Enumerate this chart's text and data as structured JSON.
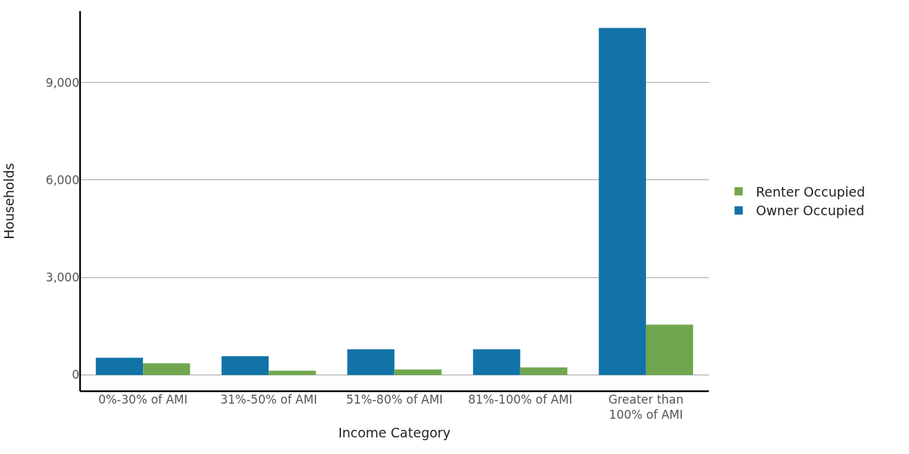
{
  "chart_data": {
    "type": "bar",
    "xlabel": "Income Category",
    "ylabel": "Households",
    "categories": [
      "0%-30% of AMI",
      "31%-50% of AMI",
      "51%-80% of AMI",
      "81%-100% of AMI",
      "Greater than 100% of AMI"
    ],
    "series": [
      {
        "name": "Owner Occupied",
        "color": "#1273a8",
        "values": [
          530,
          575,
          790,
          790,
          10680
        ]
      },
      {
        "name": "Renter Occupied",
        "color": "#6fa74e",
        "values": [
          360,
          130,
          170,
          235,
          1550
        ]
      }
    ],
    "ylim": [
      -500,
      11200
    ],
    "yticks": [
      0,
      {
        "value": 3000,
        "label": "3,000"
      },
      {
        "value": 6000,
        "label": "6,000"
      },
      {
        "value": 9000,
        "label": "9,000"
      }
    ],
    "grid": "y",
    "legend": "right"
  }
}
